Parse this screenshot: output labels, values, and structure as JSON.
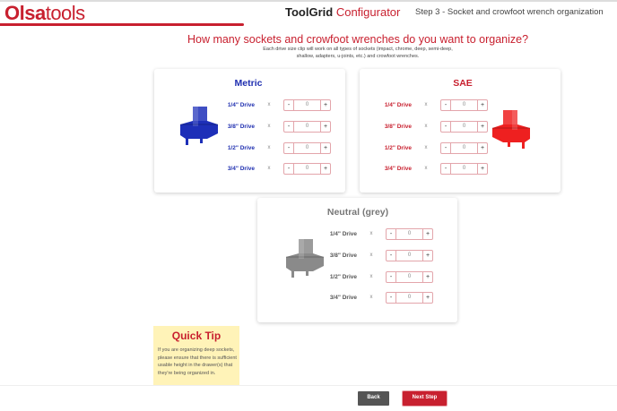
{
  "header": {
    "logo_bold": "Olsa",
    "logo_light": "tools",
    "title_a": "ToolGrid",
    "title_b": "Configurator",
    "step": "Step 3 - Socket and crowfoot wrench organization"
  },
  "question": "How many sockets and crowfoot wrenches do you want to organize?",
  "subtext": "Each drive size clip will work on all types of sockets (impact, chrome, deep, semi-deep, shallow, adapters, u-joints, etc.) and crowfoot wrenches.",
  "colors": {
    "metric": "#1f2fb0",
    "sae": "#c8202f",
    "neutral": "#777777",
    "accent": "#c8202f"
  },
  "cards": [
    {
      "title": "Metric",
      "rows": [
        {
          "label": "1/4\" Drive",
          "x": "x",
          "value": "0"
        },
        {
          "label": "3/8\" Drive",
          "x": "x",
          "value": "0"
        },
        {
          "label": "1/2\" Drive",
          "x": "x",
          "value": "0"
        },
        {
          "label": "3/4\" Drive",
          "x": "x",
          "value": "0"
        }
      ]
    },
    {
      "title": "SAE",
      "rows": [
        {
          "label": "1/4\" Drive",
          "x": "x",
          "value": "0"
        },
        {
          "label": "3/8\" Drive",
          "x": "x",
          "value": "0"
        },
        {
          "label": "1/2\" Drive",
          "x": "x",
          "value": "0"
        },
        {
          "label": "3/4\" Drive",
          "x": "x",
          "value": "0"
        }
      ]
    },
    {
      "title": "Neutral (grey)",
      "rows": [
        {
          "label": "1/4\" Drive",
          "x": "x",
          "value": "0"
        },
        {
          "label": "3/8\" Drive",
          "x": "x",
          "value": "0"
        },
        {
          "label": "1/2\" Drive",
          "x": "x",
          "value": "0"
        },
        {
          "label": "3/4\" Drive",
          "x": "x",
          "value": "0"
        }
      ]
    }
  ],
  "stepper": {
    "minus": "-",
    "plus": "+"
  },
  "tip": {
    "title": "Quick Tip",
    "text": "If you are organizing deep sockets, please ensure that there is sufficient usable height in the drawer(s) that they're being organized in."
  },
  "footer": {
    "back": "Back",
    "next": "Next Step"
  }
}
